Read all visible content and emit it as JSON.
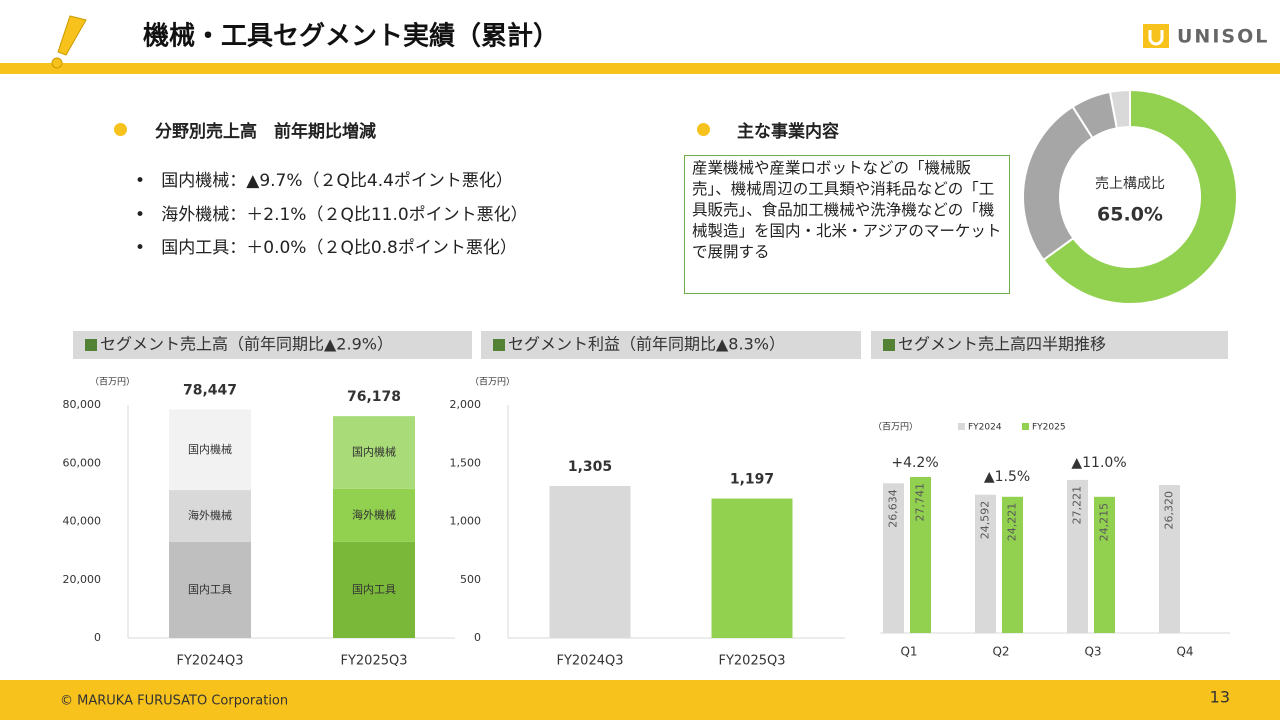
{
  "header": {
    "title": "機械・工具セグメント実績（累計）",
    "logo": "UNISOL"
  },
  "left_section": {
    "heading": "分野別売上高　前年期比増減",
    "items": [
      "国内機械：▲9.7%（２Q比4.4ポイント悪化）",
      "海外機械：＋2.1%（２Q比11.0ポイント悪化）",
      "国内工具：＋0.0%（２Q比0.8ポイント悪化）"
    ]
  },
  "right_section": {
    "heading": "主な事業内容",
    "text": "産業機械や産業ロボットなどの「機械販売」、機械周辺の工具類や消耗品などの「工具販売」、食品加工機械や洗浄機などの「機械製造」を国内・北米・アジアのマーケットで展開する"
  },
  "chart_data": [
    {
      "type": "pie",
      "center_label": "売上構成比",
      "values": [
        65.0,
        26,
        6,
        3
      ],
      "value_labels": [
        "65.0%",
        null,
        null,
        null
      ],
      "colors": [
        "#92d050",
        "#a6a6a6",
        "#a6a6a6",
        "#d9d9d9"
      ]
    },
    {
      "type": "stacked_bar",
      "title": "セグメント売上高（前年同期比▲2.9%）",
      "unit": "（百万円）",
      "categories": [
        "FY2024Q3",
        "FY2025Q3"
      ],
      "series": [
        {
          "name": "国内工具",
          "values": [
            33000,
            33000
          ],
          "colors": [
            "#bfbfbf",
            "#7ab83a"
          ]
        },
        {
          "name": "海外機械",
          "values": [
            17800,
            18200
          ],
          "colors": [
            "#d9d9d9",
            "#92d050"
          ]
        },
        {
          "name": "国内機械",
          "values": [
            27647,
            24978
          ],
          "colors": [
            "#f2f2f2",
            "#a9db78"
          ]
        }
      ],
      "totals": [
        78447,
        76178
      ],
      "total_labels": [
        "78,447",
        "76,178"
      ],
      "ylim": [
        0,
        80000
      ],
      "yticks": [
        0,
        {
          "value": 20000,
          "label": "20,000"
        },
        {
          "value": 40000,
          "label": "40,000"
        },
        {
          "value": 60000,
          "label": "60,000"
        },
        {
          "value": 80000,
          "label": "80,000"
        }
      ]
    },
    {
      "type": "bar",
      "title": "セグメント利益（前年同期比▲8.3%）",
      "unit": "（百万円）",
      "categories": [
        "FY2024Q3",
        "FY2025Q3"
      ],
      "values": [
        1305,
        1197
      ],
      "value_labels": [
        "1,305",
        "1,197"
      ],
      "colors": [
        "#d9d9d9",
        "#92d050"
      ],
      "ylim": [
        0,
        2000
      ],
      "yticks": [
        0,
        500,
        {
          "value": 1000,
          "label": "1,000"
        },
        {
          "value": 1500,
          "label": "1,500"
        },
        {
          "value": 2000,
          "label": "2,000"
        }
      ]
    },
    {
      "type": "grouped_bar",
      "title": "セグメント売上高四半期推移",
      "unit": "（百万円）",
      "categories": [
        "Q1",
        "Q2",
        "Q3",
        "Q4"
      ],
      "series": [
        {
          "name": "FY2024",
          "color": "#d9d9d9",
          "values": [
            26634,
            24592,
            27221,
            26320
          ],
          "value_labels": [
            "26,634",
            "24,592",
            "27,221",
            "26,320"
          ]
        },
        {
          "name": "FY2025",
          "color": "#92d050",
          "values": [
            27741,
            24221,
            24215,
            null
          ],
          "value_labels": [
            "27,741",
            "24,221",
            "24,215",
            null
          ]
        }
      ],
      "annotations": [
        "+4.2%",
        "▲1.5%",
        "▲11.0%"
      ]
    }
  ],
  "footer": {
    "copyright": "© MARUKA FURUSATO Corporation",
    "page": "13"
  }
}
